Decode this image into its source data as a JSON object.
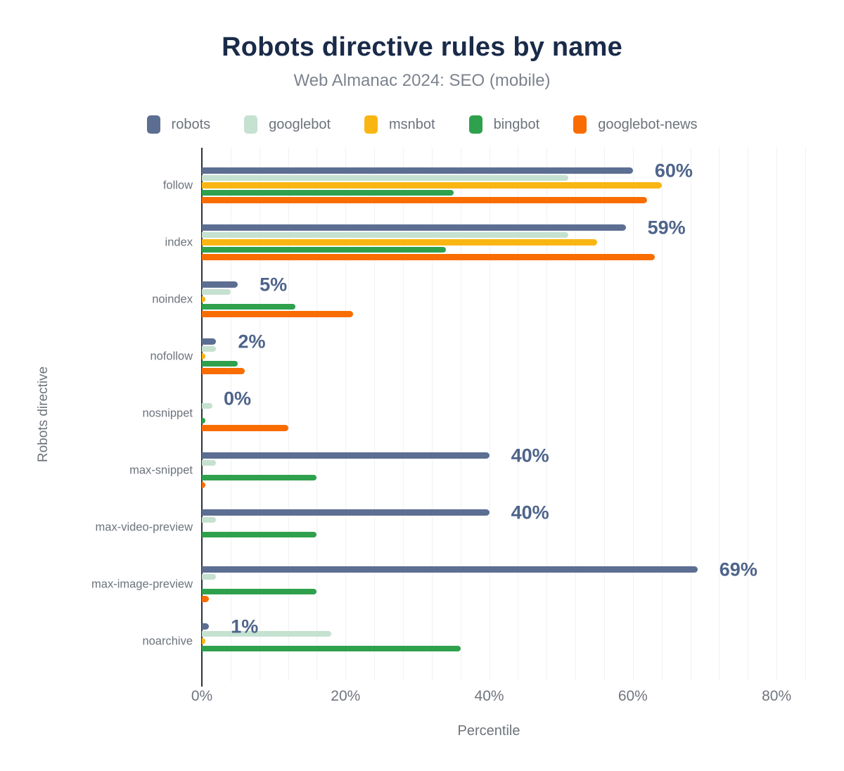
{
  "chart_data": {
    "type": "bar",
    "orientation": "horizontal",
    "title": "Robots directive rules by name",
    "subtitle": "Web Almanac 2024: SEO (mobile)",
    "xlabel": "Percentile",
    "ylabel": "Robots directive",
    "legend_position": "top",
    "grid": true,
    "grid_step": 4,
    "xlim": [
      0,
      84
    ],
    "x_ticks": [
      {
        "value": 0,
        "label": "0%"
      },
      {
        "value": 20,
        "label": "20%"
      },
      {
        "value": 40,
        "label": "40%"
      },
      {
        "value": 60,
        "label": "60%"
      },
      {
        "value": 80,
        "label": "80%"
      }
    ],
    "categories": [
      "follow",
      "index",
      "noindex",
      "nofollow",
      "nosnippet",
      "max-snippet",
      "max-video-preview",
      "max-image-preview",
      "noarchive"
    ],
    "series": [
      {
        "name": "robots",
        "color": "#5c6e91",
        "values": [
          60,
          59,
          5,
          2,
          0,
          40,
          40,
          69,
          1
        ]
      },
      {
        "name": "googlebot",
        "color": "#c5e1d0",
        "values": [
          51,
          51,
          4,
          2,
          1.5,
          2,
          2,
          2,
          18
        ]
      },
      {
        "name": "msnbot",
        "color": "#f9b613",
        "values": [
          64,
          55,
          0.5,
          0.5,
          0,
          0,
          0,
          0,
          0.5
        ]
      },
      {
        "name": "bingbot",
        "color": "#2fa14c",
        "values": [
          35,
          34,
          13,
          5,
          0.5,
          16,
          16,
          16,
          36
        ]
      },
      {
        "name": "googlebot-news",
        "color": "#f96d00",
        "values": [
          62,
          63,
          21,
          6,
          12,
          0.5,
          0,
          1,
          0
        ]
      }
    ],
    "value_labels": [
      "60%",
      "59%",
      "5%",
      "2%",
      "0%",
      "40%",
      "40%",
      "69%",
      "1%"
    ]
  },
  "theme": {
    "title_color": "#1a2b49",
    "subtitle_color": "#7d838e",
    "axis_text_color": "#6d737c",
    "value_label_color": "#4e648a",
    "gridline_color": "#f1f1f5",
    "axis_line_color": "#2e323d",
    "background": "#ffffff"
  }
}
